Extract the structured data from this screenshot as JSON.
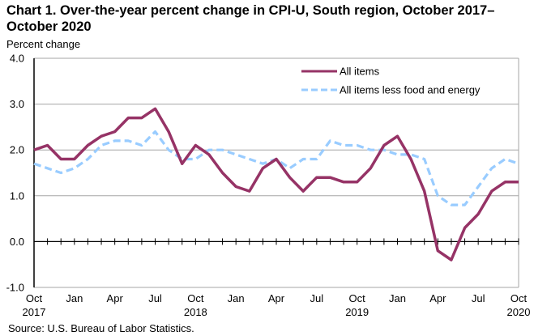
{
  "title": "Chart 1. Over-the-year percent change in CPI-U, South region, October 2017–October 2020",
  "source": "Source: U.S. Bureau of Labor Statistics.",
  "chart_data": {
    "type": "line",
    "title": "Chart 1. Over-the-year percent change in CPI-U, South region, October 2017–October 2020",
    "xlabel": "",
    "ylabel": "Percent change",
    "ylim": [
      -1.0,
      4.0
    ],
    "yticks": [
      -1.0,
      0.0,
      1.0,
      2.0,
      3.0,
      4.0
    ],
    "ytick_labels": [
      "-1.0",
      "0.0",
      "1.0",
      "2.0",
      "3.0",
      "4.0"
    ],
    "grid": true,
    "legend_position": "top-right",
    "x": [
      "Oct 2017",
      "Nov 2017",
      "Dec 2017",
      "Jan 2018",
      "Feb 2018",
      "Mar 2018",
      "Apr 2018",
      "May 2018",
      "Jun 2018",
      "Jul 2018",
      "Aug 2018",
      "Sep 2018",
      "Oct 2018",
      "Nov 2018",
      "Dec 2018",
      "Jan 2019",
      "Feb 2019",
      "Mar 2019",
      "Apr 2019",
      "May 2019",
      "Jun 2019",
      "Jul 2019",
      "Aug 2019",
      "Sep 2019",
      "Oct 2019",
      "Nov 2019",
      "Dec 2019",
      "Jan 2020",
      "Feb 2020",
      "Mar 2020",
      "Apr 2020",
      "May 2020",
      "Jun 2020",
      "Jul 2020",
      "Aug 2020",
      "Sep 2020",
      "Oct 2020"
    ],
    "xtick_labels": [
      {
        "index": 0,
        "month": "Oct",
        "year": "2017"
      },
      {
        "index": 3,
        "month": "Jan",
        "year": ""
      },
      {
        "index": 6,
        "month": "Apr",
        "year": ""
      },
      {
        "index": 9,
        "month": "Jul",
        "year": ""
      },
      {
        "index": 12,
        "month": "Oct",
        "year": "2018"
      },
      {
        "index": 15,
        "month": "Jan",
        "year": ""
      },
      {
        "index": 18,
        "month": "Apr",
        "year": ""
      },
      {
        "index": 21,
        "month": "Jul",
        "year": ""
      },
      {
        "index": 24,
        "month": "Oct",
        "year": "2019"
      },
      {
        "index": 27,
        "month": "Jan",
        "year": ""
      },
      {
        "index": 30,
        "month": "Apr",
        "year": ""
      },
      {
        "index": 33,
        "month": "Jul",
        "year": ""
      },
      {
        "index": 36,
        "month": "Oct",
        "year": "2020"
      }
    ],
    "series": [
      {
        "name": "All items",
        "color": "#963366",
        "style": "solid",
        "values": [
          2.0,
          2.1,
          1.8,
          1.8,
          2.1,
          2.3,
          2.4,
          2.7,
          2.7,
          2.9,
          2.4,
          1.7,
          2.1,
          1.9,
          1.5,
          1.2,
          1.1,
          1.6,
          1.8,
          1.4,
          1.1,
          1.4,
          1.4,
          1.3,
          1.3,
          1.6,
          2.1,
          2.3,
          1.8,
          1.1,
          -0.2,
          -0.4,
          0.3,
          0.6,
          1.1,
          1.3,
          1.3
        ]
      },
      {
        "name": "All items less food and energy",
        "color": "#99ccff",
        "style": "dashed",
        "values": [
          1.7,
          1.6,
          1.5,
          1.6,
          1.8,
          2.1,
          2.2,
          2.2,
          2.1,
          2.4,
          2.0,
          1.8,
          1.8,
          2.0,
          2.0,
          1.9,
          1.8,
          1.7,
          1.8,
          1.6,
          1.8,
          1.8,
          2.2,
          2.1,
          2.1,
          2.0,
          2.0,
          1.9,
          1.9,
          1.8,
          1.0,
          0.8,
          0.8,
          1.2,
          1.6,
          1.8,
          1.7
        ]
      }
    ]
  }
}
